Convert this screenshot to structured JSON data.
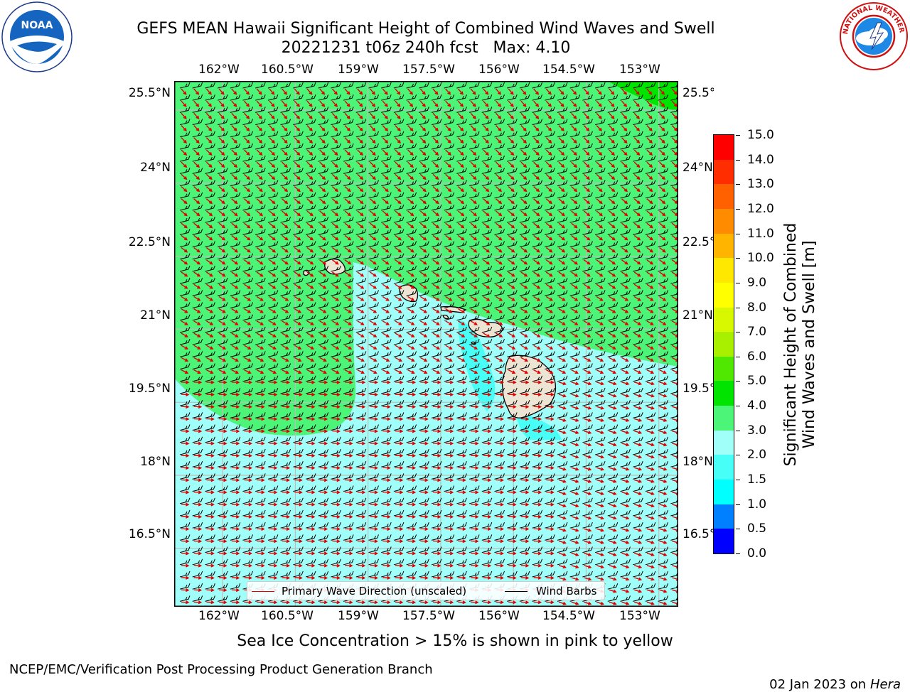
{
  "title": {
    "line1": "GEFS MEAN Hawaii Significant Height of Combined Wind Waves and Swell",
    "line2": "20221231 t06z 240h fcst   Max: 4.10"
  },
  "logos": {
    "left": {
      "text": "NOAA",
      "ring_text": "NATIONAL OCEANIC AND ATMOSPHERIC ADMINISTRATION · U.S. DEPARTMENT OF COMMERCE"
    },
    "right": {
      "text": "NATIONAL WEATHER SERVICE"
    }
  },
  "map": {
    "lon_labels": [
      "162°W",
      "160.5°W",
      "159°W",
      "157.5°W",
      "156°W",
      "154.5°W",
      "153°W"
    ],
    "lat_labels": [
      "25.5°N",
      "24°N",
      "22.5°N",
      "21°N",
      "19.5°N",
      "18°N",
      "16.5°N"
    ],
    "lon_range": [
      -163,
      -152.6
    ],
    "lat_range": [
      15.3,
      26.1
    ],
    "grid": true,
    "colors": {
      "land": "#ece5d4",
      "grid": "#bcbcbc",
      "wave_arrow": "#e00000",
      "barb": "#000000"
    }
  },
  "legend": {
    "items": [
      {
        "label": "Primary Wave Direction (unscaled)",
        "color": "#e00000"
      },
      {
        "label": "Wind Barbs",
        "color": "#000000"
      }
    ],
    "position": "bottom-center"
  },
  "colorbar": {
    "label_line1": "Significant Height of Combined",
    "label_line2": "Wind Waves and Swell [m]",
    "ticks": [
      "0.0",
      "0.5",
      "1.0",
      "1.5",
      "2.0",
      "3.0",
      "4.0",
      "5.0",
      "6.0",
      "7.0",
      "8.0",
      "9.0",
      "10.0",
      "11.0",
      "12.0",
      "13.0",
      "14.0",
      "15.0"
    ],
    "colors": [
      "#0000ff",
      "#0080ff",
      "#00ffff",
      "#48fff8",
      "#a0fff8",
      "#4cf478",
      "#00e400",
      "#50e800",
      "#a8f000",
      "#d8f800",
      "#ffff00",
      "#ffe800",
      "#ffb400",
      "#ff8c00",
      "#ff6000",
      "#ff2d00",
      "#ff0000"
    ]
  },
  "footer": {
    "ice_note": "Sea Ice Concentration > 15% is shown in pink to yellow",
    "left": "NCEP/EMC/Verification Post Processing Product Generation Branch",
    "right_date": "02 Jan 2023 on ",
    "right_host": "Hera"
  },
  "chart_data": {
    "type": "heatmap",
    "field": "Significant Height of Combined Wind Waves and Swell",
    "unit": "m",
    "max": 4.1,
    "fcst_hour": 240,
    "init": "20221231 t06z",
    "levels": [
      0.0,
      0.5,
      1.0,
      1.5,
      2.0,
      3.0,
      4.0,
      5.0,
      6.0,
      7.0,
      8.0,
      9.0,
      10.0,
      11.0,
      12.0,
      13.0,
      14.0,
      15.0
    ]
  }
}
